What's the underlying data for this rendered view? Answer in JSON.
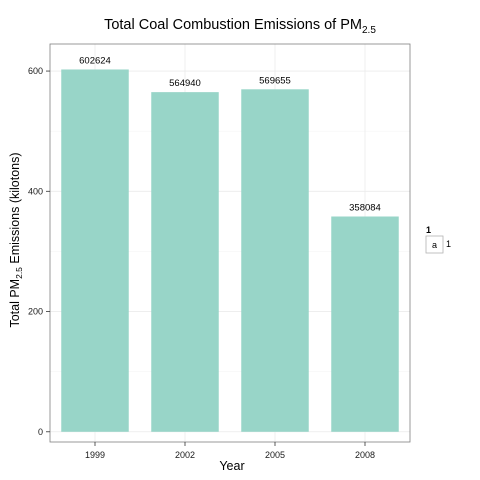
{
  "chart_data": {
    "type": "bar",
    "title": "Total Coal Combustion Emissions of PM",
    "title_subscript": "2.5",
    "xlabel": "Year",
    "ylabel_prefix": "Total PM",
    "ylabel_subscript": "2.5",
    "ylabel_suffix": " Emissions (kilotons)",
    "categories": [
      "1999",
      "2002",
      "2005",
      "2008"
    ],
    "values": [
      602.624,
      564.94,
      569.655,
      358.084
    ],
    "data_labels": [
      "602624",
      "564940",
      "569655",
      "358084"
    ],
    "y_ticks": [
      0,
      200,
      400,
      600
    ],
    "ylim": [
      -17,
      645
    ],
    "grid": true,
    "bar_color": "#98d5c8",
    "legend": {
      "position": "right",
      "title": "1",
      "key_label": "a",
      "entry_label": "1"
    }
  }
}
